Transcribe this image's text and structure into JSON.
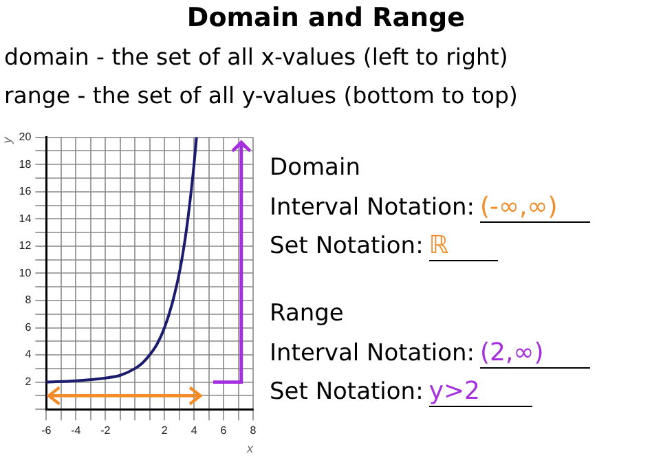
{
  "chart_data": {
    "type": "line",
    "title": "Domain and Range",
    "xlabel": "x",
    "ylabel": "y",
    "x": [
      -6,
      -4,
      -2,
      -1,
      0,
      0.5,
      1,
      1.5,
      2,
      2.5,
      3,
      3.25,
      3.5,
      3.75,
      4,
      4.17
    ],
    "series": [
      {
        "color": "#1c1c6e",
        "values": [
          2,
          2.1,
          2.3,
          2.5,
          3,
          3.4,
          4,
          4.8,
          6,
          7.7,
          10,
          11.5,
          13.3,
          15.5,
          18,
          20
        ]
      }
    ],
    "xlim": [
      -6,
      8
    ],
    "ylim": [
      0,
      20
    ],
    "xticks": [
      -6,
      {
        "value": -5,
        "label": null
      },
      -4,
      {
        "value": -3,
        "label": null
      },
      -2,
      {
        "value": -1,
        "label": null
      },
      {
        "value": 0,
        "label": null
      },
      {
        "value": 1,
        "label": null
      },
      2,
      {
        "value": 3,
        "label": null
      },
      4,
      {
        "value": 5,
        "label": null
      },
      6,
      {
        "value": 7,
        "label": null
      },
      8
    ],
    "yticks": [
      {
        "value": 0,
        "label": null
      },
      {
        "value": 1,
        "label": null
      },
      2,
      {
        "value": 3,
        "label": null
      },
      4,
      {
        "value": 5,
        "label": null
      },
      6,
      {
        "value": 7,
        "label": null
      },
      8,
      {
        "value": 9,
        "label": null
      },
      10,
      {
        "value": 11,
        "label": null
      },
      12,
      {
        "value": 13,
        "label": null
      },
      14,
      {
        "value": 15,
        "label": null
      },
      16,
      {
        "value": 17,
        "label": null
      },
      18,
      {
        "value": 19,
        "label": null
      },
      20
    ],
    "grid": true,
    "legend": false,
    "marker": "none",
    "line_style": "solid",
    "annotations": [
      "domain - the set of all x-values (left to right)",
      "range - the set of all y-values (bottom to top)",
      "Domain",
      "Interval Notation:",
      "(-∞,∞)",
      "Set Notation:",
      "ℝ",
      "Range",
      "Interval Notation:",
      "(2,∞)",
      "Set Notation:",
      "y>2"
    ]
  }
}
